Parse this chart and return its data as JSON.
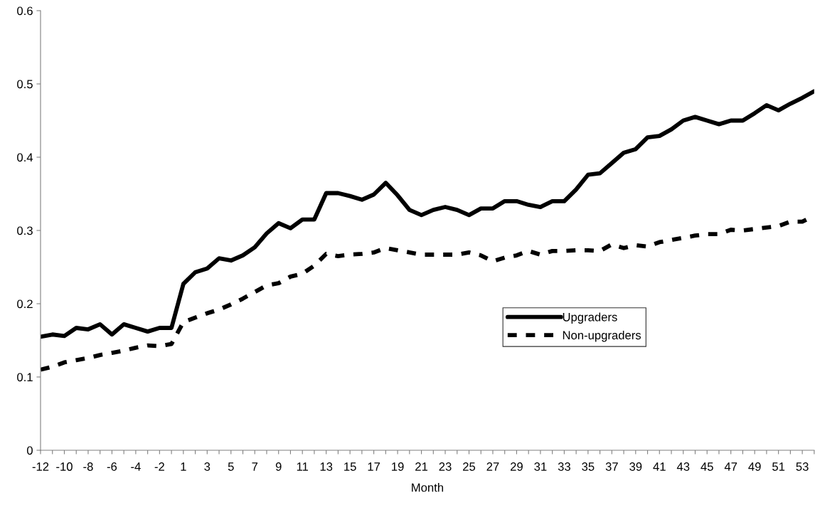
{
  "chart_data": {
    "type": "line",
    "xlabel": "Month",
    "categories": [
      "-12",
      null,
      "-10",
      null,
      "-8",
      null,
      "-6",
      null,
      "-4",
      null,
      "-2",
      null,
      "1",
      null,
      "3",
      null,
      "5",
      null,
      "7",
      null,
      "9",
      null,
      "11",
      null,
      "13",
      null,
      "15",
      null,
      "17",
      null,
      "19",
      null,
      "21",
      null,
      "23",
      null,
      "25",
      null,
      "27",
      null,
      "29",
      null,
      "31",
      null,
      "33",
      null,
      "35",
      null,
      "37",
      null,
      "39",
      null,
      "41",
      null,
      "43",
      null,
      "45",
      null,
      "47",
      null,
      "49",
      null,
      "51",
      null,
      "53",
      null
    ],
    "series": [
      {
        "name": "Upgraders",
        "color": "#000000",
        "line_style": "solid",
        "values": [
          0.155,
          0.158,
          0.156,
          0.167,
          0.165,
          0.172,
          0.158,
          0.172,
          0.167,
          0.162,
          0.167,
          0.167,
          0.227,
          0.243,
          0.248,
          0.262,
          0.259,
          0.266,
          0.277,
          0.296,
          0.31,
          0.303,
          0.315,
          0.315,
          0.351,
          0.351,
          0.347,
          0.342,
          0.349,
          0.365,
          0.348,
          0.328,
          0.321,
          0.328,
          0.332,
          0.328,
          0.321,
          0.33,
          0.33,
          0.34,
          0.34,
          0.335,
          0.332,
          0.34,
          0.34,
          0.356,
          0.376,
          0.378,
          0.392,
          0.406,
          0.411,
          0.427,
          0.429,
          0.438,
          0.45,
          0.455,
          0.45,
          0.445,
          0.45,
          0.45,
          0.46,
          0.471,
          0.464,
          0.473,
          0.481,
          0.49
        ]
      },
      {
        "name": "Non-upgraders",
        "color": "#000000",
        "line_style": "dashed",
        "values": [
          0.11,
          0.114,
          0.12,
          0.123,
          0.126,
          0.13,
          0.133,
          0.136,
          0.14,
          0.143,
          0.142,
          0.145,
          0.175,
          0.181,
          0.187,
          0.192,
          0.199,
          0.207,
          0.216,
          0.225,
          0.228,
          0.237,
          0.241,
          0.252,
          0.268,
          0.265,
          0.267,
          0.268,
          0.27,
          0.276,
          0.273,
          0.27,
          0.267,
          0.267,
          0.267,
          0.267,
          0.27,
          0.266,
          0.258,
          0.263,
          0.266,
          0.272,
          0.267,
          0.272,
          0.272,
          0.273,
          0.273,
          0.272,
          0.281,
          0.276,
          0.28,
          0.278,
          0.284,
          0.287,
          0.29,
          0.293,
          0.295,
          0.295,
          0.301,
          0.3,
          0.302,
          0.304,
          0.306,
          0.312,
          0.312,
          0.32
        ]
      }
    ],
    "ylim": [
      0,
      0.6
    ],
    "yticks": [
      0,
      0.1,
      0.2,
      0.3,
      0.4,
      0.5,
      0.6
    ],
    "grid": false,
    "legend": "right",
    "marker": "none"
  }
}
